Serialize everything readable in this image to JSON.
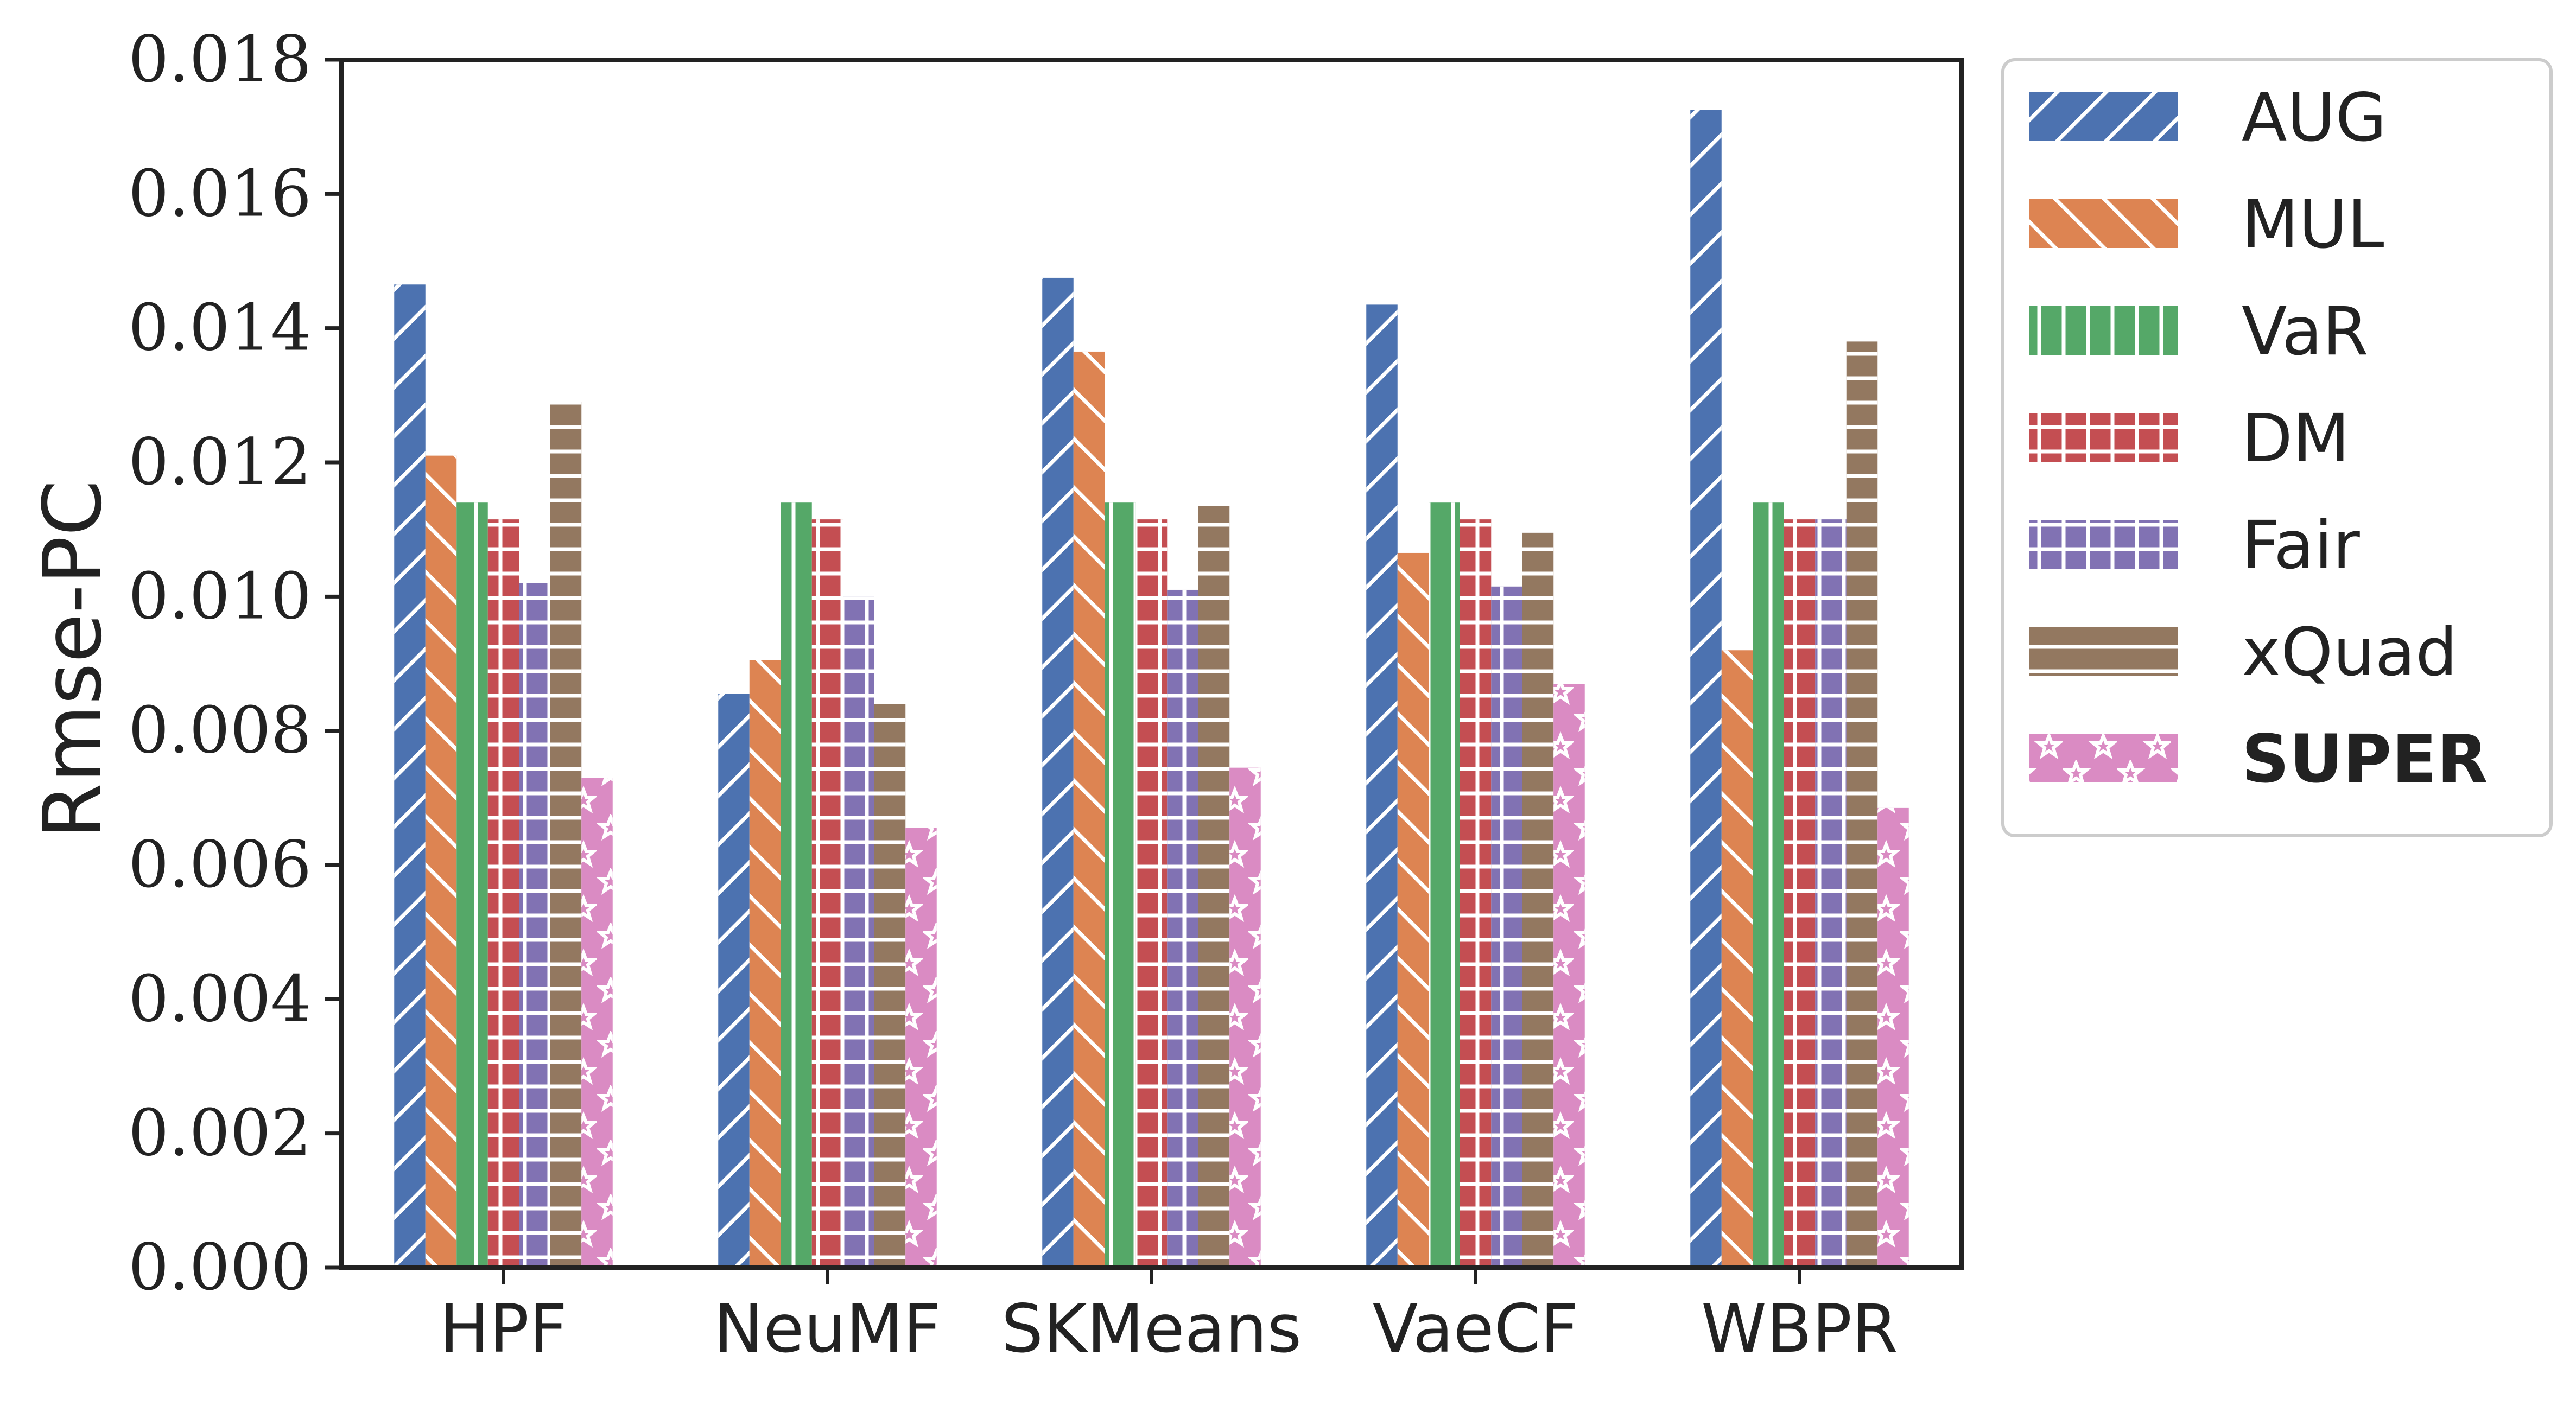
{
  "chart_data": {
    "type": "bar",
    "title": "",
    "xlabel": "",
    "ylabel": "Rmse-PC",
    "ylim": [
      0,
      0.018
    ],
    "yticks": [
      "0.000",
      "0.002",
      "0.004",
      "0.006",
      "0.008",
      "0.010",
      "0.012",
      "0.014",
      "0.016",
      "0.018"
    ],
    "ytick_values": [
      0,
      0.002,
      0.004,
      0.006,
      0.008,
      0.01,
      0.012,
      0.014,
      0.016,
      0.018
    ],
    "categories": [
      "HPF",
      "NeuMF",
      "SKMeans",
      "VaeCF",
      "WBPR"
    ],
    "legend_position": "outside-right-top",
    "grid": false,
    "series": [
      {
        "name": "AUG",
        "color": "#4c72b0",
        "hatch": "diagonal",
        "bold": false,
        "values": [
          0.01465,
          0.00855,
          0.01475,
          0.01435,
          0.01725
        ]
      },
      {
        "name": "MUL",
        "color": "#dd8452",
        "hatch": "back-diagonal",
        "bold": false,
        "values": [
          0.0121,
          0.00905,
          0.01365,
          0.01065,
          0.0092
        ]
      },
      {
        "name": "VaR",
        "color": "#55a868",
        "hatch": "vertical",
        "bold": false,
        "values": [
          0.0114,
          0.0114,
          0.0114,
          0.0114,
          0.0114
        ]
      },
      {
        "name": "DM",
        "color": "#c44e52",
        "hatch": "grid",
        "bold": false,
        "values": [
          0.01115,
          0.01115,
          0.01115,
          0.01115,
          0.01115
        ]
      },
      {
        "name": "Fair",
        "color": "#8172b3",
        "hatch": "grid",
        "bold": false,
        "values": [
          0.0102,
          0.01,
          0.0101,
          0.01015,
          0.01115
        ]
      },
      {
        "name": "xQuad",
        "color": "#937860",
        "hatch": "horizontal",
        "bold": false,
        "values": [
          0.0129,
          0.0084,
          0.01135,
          0.01095,
          0.0138
        ]
      },
      {
        "name": "SUPER",
        "color": "#da8bc3",
        "hatch": "stars",
        "bold": true,
        "values": [
          0.0073,
          0.00655,
          0.00745,
          0.0087,
          0.00685
        ]
      }
    ]
  }
}
